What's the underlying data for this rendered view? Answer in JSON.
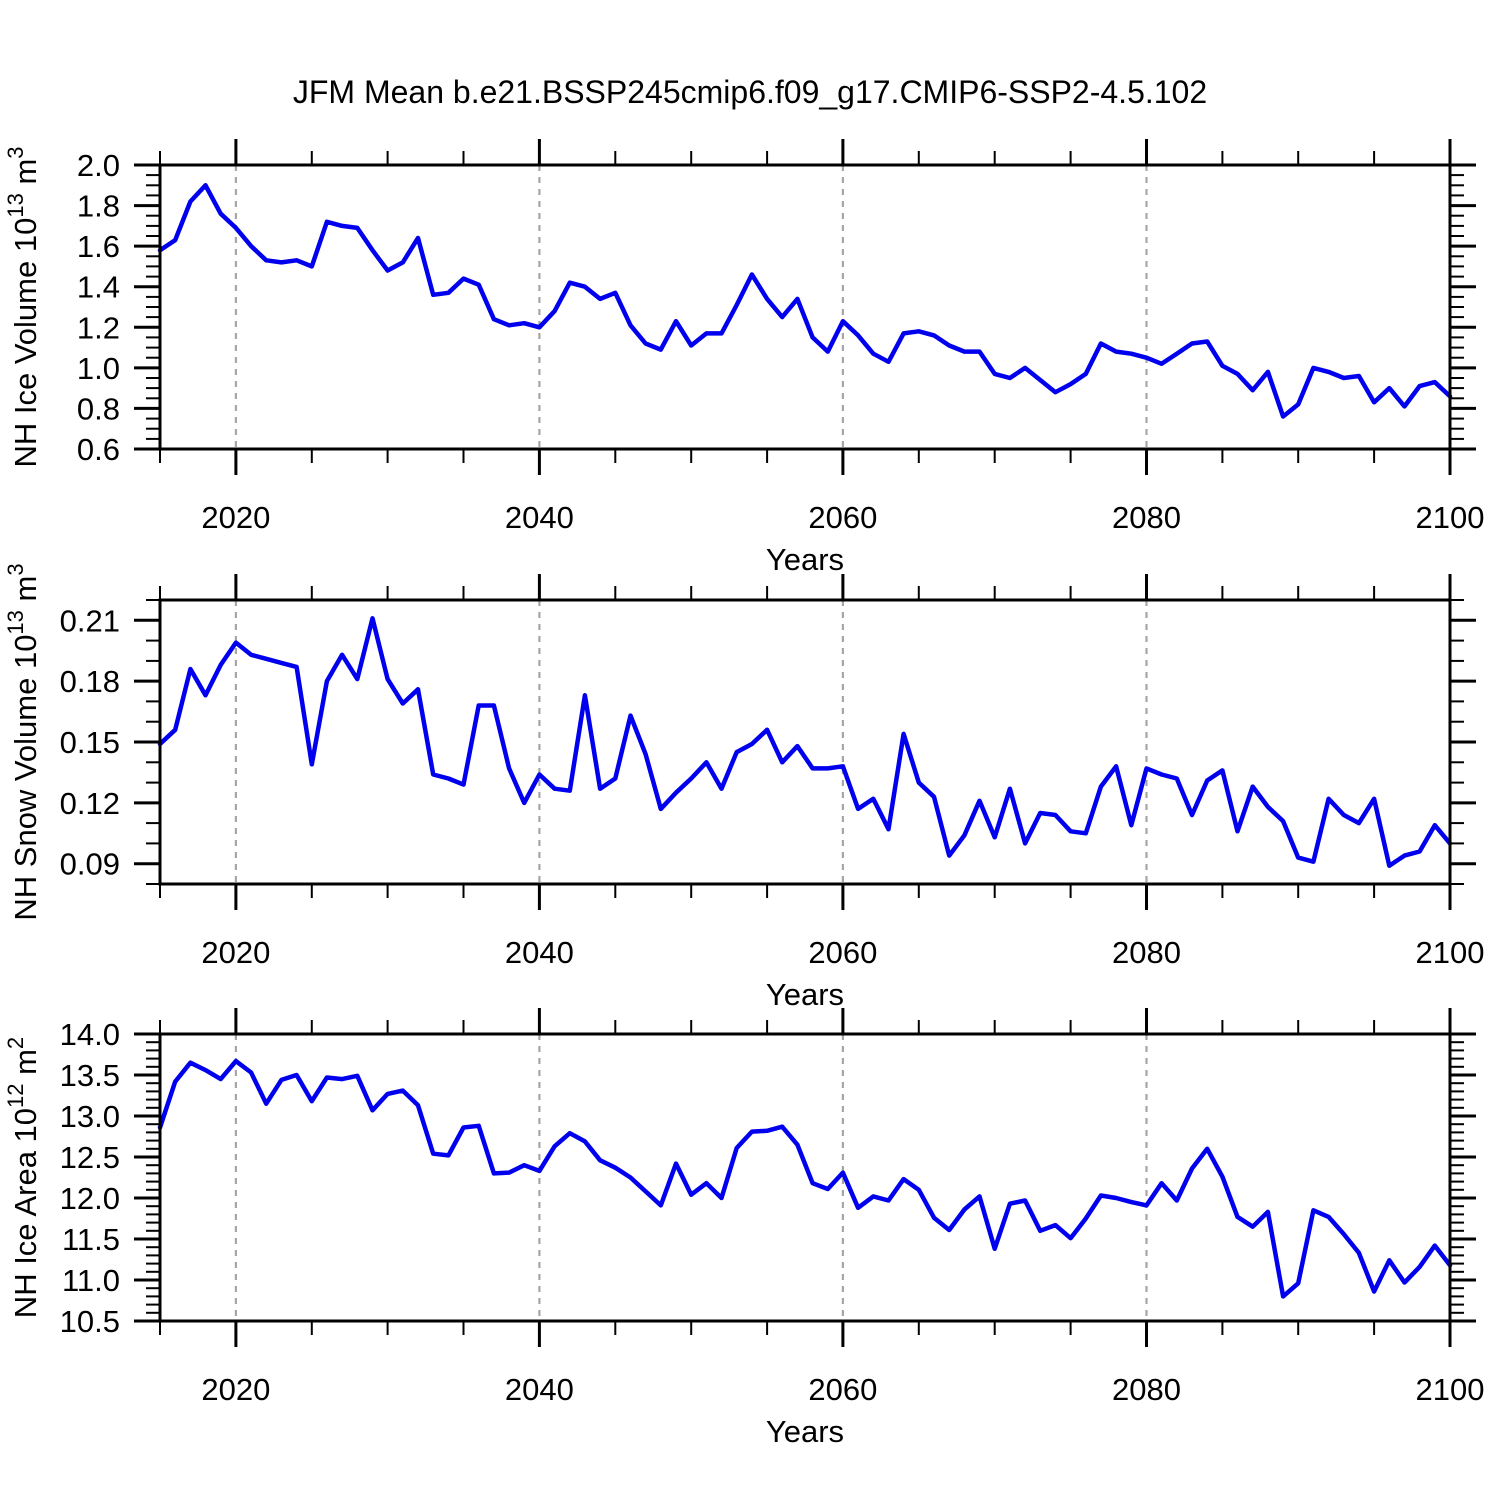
{
  "title": "JFM Mean b.e21.BSSP245cmip6.f09_g17.CMIP6-SSP2-4.5.102",
  "colors": {
    "line": "#0000ee",
    "grid": "#a6a6a6",
    "frame": "#000000",
    "background": "#ffffff"
  },
  "chart_data": [
    {
      "type": "line",
      "name": "nh-ice-volume",
      "ylabel": {
        "base": "NH Ice Volume 10",
        "exp": "13",
        "unit": " m",
        "unit_exp": "3"
      },
      "xlabel": "Years",
      "xlim": [
        2015,
        2100
      ],
      "ylim": [
        0.6,
        2.0
      ],
      "xticks": [
        2020,
        2040,
        2060,
        2080,
        2100
      ],
      "xtick_labels": [
        "2020",
        "2040",
        "2060",
        "2080",
        "2100"
      ],
      "xtick_minor_step": 5,
      "yticks": [
        0.6,
        0.8,
        1.0,
        1.2,
        1.4,
        1.6,
        1.8,
        2.0
      ],
      "ytick_labels": [
        "0.6",
        "0.8",
        "1.0",
        "1.2",
        "1.4",
        "1.6",
        "1.8",
        "2.0"
      ],
      "ytick_minor_step": 0.05,
      "grid_x": [
        2020,
        2040,
        2060,
        2080
      ],
      "x_start": 2015,
      "x_step": 1,
      "values": [
        1.58,
        1.63,
        1.82,
        1.9,
        1.76,
        1.69,
        1.6,
        1.53,
        1.52,
        1.53,
        1.5,
        1.72,
        1.7,
        1.69,
        1.58,
        1.48,
        1.52,
        1.64,
        1.36,
        1.37,
        1.44,
        1.41,
        1.24,
        1.21,
        1.22,
        1.2,
        1.28,
        1.42,
        1.4,
        1.34,
        1.37,
        1.21,
        1.12,
        1.09,
        1.23,
        1.11,
        1.17,
        1.17,
        1.31,
        1.46,
        1.34,
        1.25,
        1.34,
        1.15,
        1.08,
        1.23,
        1.16,
        1.07,
        1.03,
        1.17,
        1.18,
        1.16,
        1.11,
        1.08,
        1.08,
        0.97,
        0.95,
        1.0,
        0.94,
        0.88,
        0.92,
        0.97,
        1.12,
        1.08,
        1.07,
        1.05,
        1.02,
        1.07,
        1.12,
        1.13,
        1.01,
        0.97,
        0.89,
        0.98,
        0.76,
        0.82,
        1.0,
        0.98,
        0.95,
        0.96,
        0.83,
        0.9,
        0.81,
        0.91,
        0.93,
        0.86
      ]
    },
    {
      "type": "line",
      "name": "nh-snow-volume",
      "ylabel": {
        "base": "NH Snow Volume 10",
        "exp": "13",
        "unit": " m",
        "unit_exp": "3"
      },
      "xlabel": "Years",
      "xlim": [
        2015,
        2100
      ],
      "ylim": [
        0.08,
        0.22
      ],
      "xticks": [
        2020,
        2040,
        2060,
        2080,
        2100
      ],
      "xtick_labels": [
        "2020",
        "2040",
        "2060",
        "2080",
        "2100"
      ],
      "xtick_minor_step": 5,
      "yticks": [
        0.09,
        0.12,
        0.15,
        0.18,
        0.21
      ],
      "ytick_labels": [
        "0.09",
        "0.12",
        "0.15",
        "0.18",
        "0.21"
      ],
      "ytick_minor_step": 0.01,
      "grid_x": [
        2020,
        2040,
        2060,
        2080
      ],
      "x_start": 2015,
      "x_step": 1,
      "values": [
        0.149,
        0.156,
        0.186,
        0.173,
        0.188,
        0.199,
        0.193,
        0.191,
        0.189,
        0.187,
        0.139,
        0.18,
        0.193,
        0.181,
        0.211,
        0.181,
        0.169,
        0.176,
        0.134,
        0.132,
        0.129,
        0.168,
        0.168,
        0.137,
        0.12,
        0.134,
        0.127,
        0.126,
        0.173,
        0.127,
        0.132,
        0.163,
        0.144,
        0.117,
        0.125,
        0.132,
        0.14,
        0.127,
        0.145,
        0.149,
        0.156,
        0.14,
        0.148,
        0.137,
        0.137,
        0.138,
        0.117,
        0.122,
        0.107,
        0.154,
        0.13,
        0.123,
        0.094,
        0.104,
        0.121,
        0.103,
        0.127,
        0.1,
        0.115,
        0.114,
        0.106,
        0.105,
        0.128,
        0.138,
        0.109,
        0.137,
        0.134,
        0.132,
        0.114,
        0.131,
        0.136,
        0.106,
        0.128,
        0.118,
        0.111,
        0.093,
        0.091,
        0.122,
        0.114,
        0.11,
        0.122,
        0.089,
        0.094,
        0.096,
        0.109,
        0.1
      ]
    },
    {
      "type": "line",
      "name": "nh-ice-area",
      "ylabel": {
        "base": "NH Ice Area 10",
        "exp": "12",
        "unit": " m",
        "unit_exp": "2"
      },
      "xlabel": "Years",
      "xlim": [
        2015,
        2100
      ],
      "ylim": [
        10.5,
        14.0
      ],
      "xticks": [
        2020,
        2040,
        2060,
        2080,
        2100
      ],
      "xtick_labels": [
        "2020",
        "2040",
        "2060",
        "2080",
        "2100"
      ],
      "xtick_minor_step": 5,
      "yticks": [
        10.5,
        11.0,
        11.5,
        12.0,
        12.5,
        13.0,
        13.5,
        14.0
      ],
      "ytick_labels": [
        "10.5",
        "11.0",
        "11.5",
        "12.0",
        "12.5",
        "13.0",
        "13.5",
        "14.0"
      ],
      "ytick_minor_step": 0.1,
      "grid_x": [
        2020,
        2040,
        2060,
        2080
      ],
      "x_start": 2015,
      "x_step": 1,
      "values": [
        12.86,
        13.42,
        13.65,
        13.56,
        13.45,
        13.67,
        13.53,
        13.15,
        13.44,
        13.5,
        13.18,
        13.47,
        13.45,
        13.49,
        13.07,
        13.27,
        13.31,
        13.13,
        12.54,
        12.52,
        12.86,
        12.88,
        12.3,
        12.31,
        12.4,
        12.33,
        12.63,
        12.79,
        12.69,
        12.46,
        12.37,
        12.25,
        12.08,
        11.91,
        12.42,
        12.04,
        12.18,
        12.0,
        12.61,
        12.81,
        12.82,
        12.87,
        12.65,
        12.18,
        12.11,
        12.31,
        11.88,
        12.02,
        11.97,
        12.23,
        12.1,
        11.76,
        11.61,
        11.86,
        12.02,
        11.38,
        11.93,
        11.97,
        11.6,
        11.67,
        11.51,
        11.75,
        12.03,
        12.0,
        11.95,
        11.91,
        12.18,
        11.97,
        12.36,
        12.6,
        12.26,
        11.77,
        11.65,
        11.83,
        10.8,
        10.96,
        11.85,
        11.77,
        11.56,
        11.33,
        10.86,
        11.24,
        10.97,
        11.16,
        11.42,
        11.18
      ]
    }
  ]
}
